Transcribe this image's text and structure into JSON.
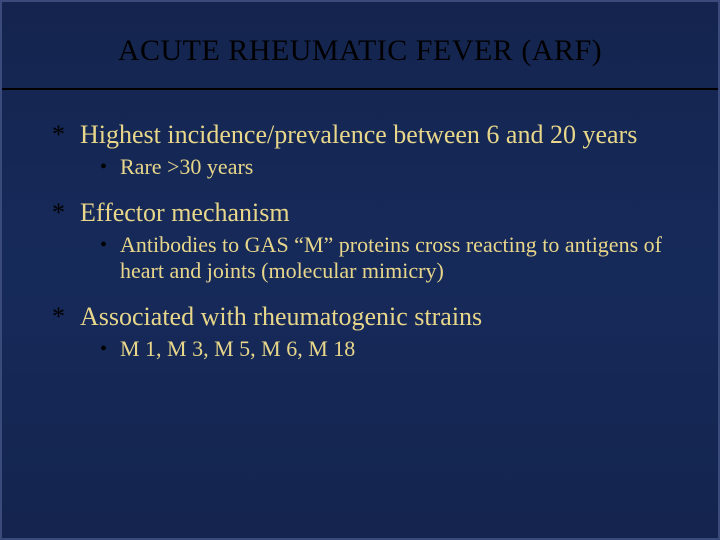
{
  "slide": {
    "title": "ACUTE RHEUMATIC FEVER (ARF)",
    "title_fontsize": 30,
    "title_color": "#000000",
    "background_gradient": [
      "#14244e",
      "#162a5a",
      "#14244e"
    ],
    "rule_color": "#000000",
    "body_color": "#e8d78a",
    "bullet_color": "#000000",
    "items": [
      {
        "text": "Highest incidence/prevalence between 6 and 20 years",
        "sub": [
          {
            "text": "Rare >30 years"
          }
        ]
      },
      {
        "text": "Effector mechanism",
        "sub": [
          {
            "text": "Antibodies to GAS “M” proteins cross reacting to antigens of heart and joints (molecular mimicry)"
          }
        ]
      },
      {
        "text": "Associated with rheumatogenic strains",
        "sub": [
          {
            "text": "M 1, M 3, M 5, M 6, M 18"
          }
        ]
      }
    ],
    "top_fontsize": 26,
    "sub_fontsize": 22
  }
}
